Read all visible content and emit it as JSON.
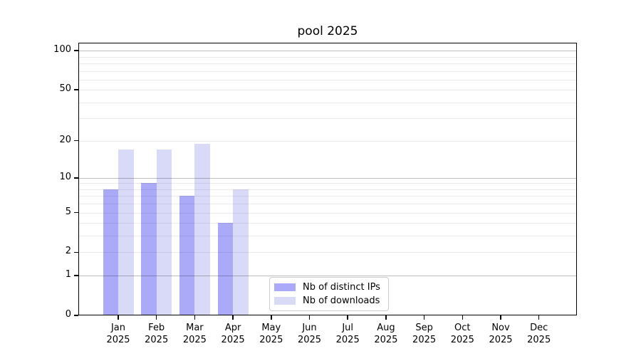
{
  "title": "pool 2025",
  "chart_data": {
    "type": "bar",
    "title": "pool 2025",
    "categories": [
      "Jan",
      "Feb",
      "Mar",
      "Apr",
      "May",
      "Jun",
      "Jul",
      "Aug",
      "Sep",
      "Oct",
      "Nov",
      "Dec"
    ],
    "year_label": "2025",
    "series": [
      {
        "name": "Nb of distinct IPs",
        "color": "#aaaaf8",
        "values": [
          8,
          9,
          7,
          4,
          0,
          0,
          0,
          0,
          0,
          0,
          0,
          0
        ]
      },
      {
        "name": "Nb of downloads",
        "color": "#d9d9f8",
        "values": [
          17,
          17,
          19,
          8,
          0,
          0,
          0,
          0,
          0,
          0,
          0,
          0
        ]
      }
    ],
    "scale": "log1p",
    "ylim": [
      0,
      115
    ],
    "yticks": [
      0,
      1,
      2,
      5,
      10,
      20,
      50,
      100
    ],
    "major_gridlines": [
      1,
      10,
      100
    ],
    "minor_gridlines": [
      2,
      3,
      4,
      5,
      6,
      7,
      8,
      9,
      20,
      30,
      40,
      50,
      60,
      70,
      80,
      90
    ],
    "grid": true,
    "legend_position": "bottom-center",
    "xlabel": "",
    "ylabel": ""
  }
}
